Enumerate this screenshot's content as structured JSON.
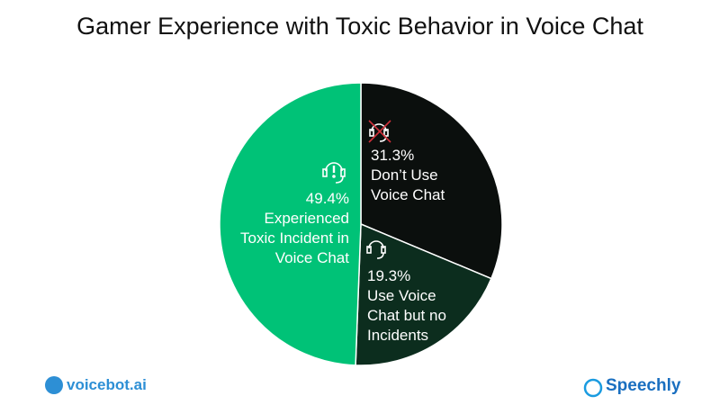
{
  "chart_data": {
    "type": "pie",
    "title": "Gamer Experience with Toxic Behavior in Voice Chat",
    "categories": [
      "Don’t Use Voice Chat",
      "Use Voice Chat but no Incidents",
      "Experienced Toxic Incident in Voice Chat"
    ],
    "values": [
      31.3,
      19.3,
      49.4
    ],
    "value_labels": [
      "31.3%",
      "19.3%",
      "49.4%"
    ],
    "colors": [
      "#0b0f0d",
      "#0c2d1e",
      "#00c277"
    ]
  },
  "logos": [
    "voicebot.ai",
    "Speechly"
  ]
}
